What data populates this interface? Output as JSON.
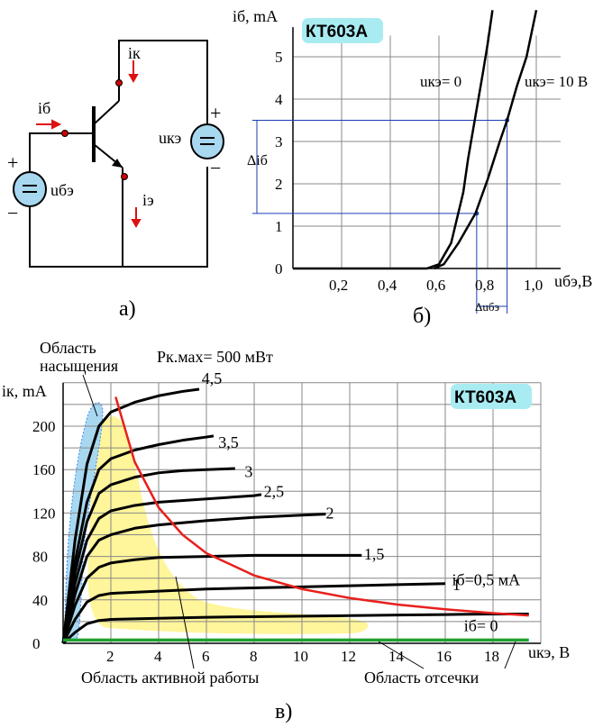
{
  "circuit": {
    "ik": "iк",
    "ib": "iб",
    "ie": "iэ",
    "ube": "uбэ",
    "uce": "uкэ",
    "plus1": "+",
    "minus1": "−",
    "plus2": "+",
    "minus2": "−",
    "caption": "а)"
  },
  "input_chart": {
    "badge": "КТ603А",
    "ylabel": "iб, mA",
    "xlabel": "uбэ,В",
    "y_ticks": [
      "0",
      "1",
      "2",
      "3",
      "4",
      "5"
    ],
    "x_ticks": [
      "0,2",
      "0,4",
      "0,6",
      "0,8",
      "1,0"
    ],
    "curve_label_0": "uкэ= 0",
    "curve_label_10": "uкэ= 10 В",
    "delta_ib": "Δiб",
    "delta_ube": "Δuбэ",
    "caption": "б)"
  },
  "output_chart": {
    "badge": "КТ603А",
    "ylabel": "iк, mA",
    "xlabel": "uкэ, В",
    "y_ticks": [
      "0",
      "40",
      "80",
      "120",
      "160",
      "200"
    ],
    "x_ticks": [
      "2",
      "4",
      "6",
      "8",
      "10",
      "12",
      "14",
      "16",
      "18"
    ],
    "pmax_label": "Pк.мах= 500 мВт",
    "saturation_label_1": "Область",
    "saturation_label_2": "насыщения",
    "active_label": "Область активной работы",
    "cutoff_label": "Область отсечки",
    "curve_labels": [
      "4,5",
      "3,5",
      "3",
      "2,5",
      "2",
      "1,5",
      "1",
      "iб=0,5 мА",
      "iб= 0"
    ],
    "caption": "в)",
    "colors": {
      "pmax": "#e8201c",
      "active": "#fff59a",
      "saturation": "#a8d8f0",
      "cutoff": "#21a131"
    }
  },
  "chart_data": [
    {
      "type": "line",
      "title": "КТ603А",
      "xlabel": "uбэ,В",
      "ylabel": "iб, mA",
      "xlim": [
        0,
        1.1
      ],
      "ylim": [
        0,
        5.5
      ],
      "series": [
        {
          "name": "uкэ= 0",
          "x": [
            0,
            0.55,
            0.6,
            0.65,
            0.7,
            0.72,
            0.75,
            0.78,
            0.8,
            0.82
          ],
          "y": [
            0,
            0,
            0.1,
            0.6,
            1.8,
            2.6,
            3.6,
            4.6,
            5.3,
            6.1
          ]
        },
        {
          "name": "uкэ= 10 В",
          "x": [
            0.58,
            0.62,
            0.68,
            0.75,
            0.8,
            0.85,
            0.88,
            0.92,
            0.96,
            1.0
          ],
          "y": [
            0,
            0.1,
            0.6,
            1.3,
            2.1,
            3.0,
            3.5,
            4.3,
            5.0,
            6.1
          ]
        }
      ]
    },
    {
      "type": "line",
      "title": "КТ603А",
      "xlabel": "uкэ, В",
      "ylabel": "iк, mA",
      "xlim": [
        0,
        20
      ],
      "ylim": [
        0,
        240
      ],
      "series": [
        {
          "name": "4,5",
          "x": [
            0,
            0.5,
            1,
            1.5,
            2,
            3,
            4,
            5,
            5.7
          ],
          "y": [
            0,
            95,
            165,
            200,
            213,
            222,
            228,
            232,
            234
          ]
        },
        {
          "name": "3,5",
          "x": [
            0,
            0.5,
            1,
            1.5,
            2,
            3,
            4,
            5,
            6,
            6.3
          ],
          "y": [
            0,
            75,
            130,
            160,
            170,
            178,
            183,
            187,
            190,
            191
          ]
        },
        {
          "name": "3",
          "x": [
            0,
            0.5,
            1,
            1.5,
            2,
            3,
            4,
            5,
            6,
            7.2
          ],
          "y": [
            0,
            65,
            112,
            138,
            146,
            153,
            157,
            159,
            160,
            161
          ]
        },
        {
          "name": "2,5",
          "x": [
            0,
            0.5,
            1,
            1.5,
            2,
            3,
            4,
            6,
            8,
            8.3
          ],
          "y": [
            0,
            55,
            95,
            115,
            122,
            127,
            130,
            133,
            136,
            137
          ]
        },
        {
          "name": "2",
          "x": [
            0,
            0.5,
            1,
            1.5,
            2,
            3,
            4,
            6,
            8,
            10,
            11
          ],
          "y": [
            0,
            45,
            80,
            95,
            100,
            106,
            109,
            113,
            116,
            118,
            119
          ]
        },
        {
          "name": "1,5",
          "x": [
            0,
            0.5,
            1,
            1.5,
            2,
            3,
            4,
            6,
            8,
            10,
            12,
            12.5
          ],
          "y": [
            0,
            35,
            60,
            70,
            74,
            77,
            79,
            80,
            81,
            81,
            81,
            81
          ]
        },
        {
          "name": "1",
          "x": [
            0,
            0.5,
            1,
            1.5,
            2,
            4,
            6,
            8,
            10,
            12,
            14,
            16
          ],
          "y": [
            0,
            22,
            38,
            44,
            46,
            48,
            50,
            51,
            52,
            53,
            54,
            55
          ]
        },
        {
          "name": "iб=0,5 мА",
          "x": [
            0,
            0.5,
            1,
            1.5,
            2,
            4,
            6,
            8,
            10,
            12,
            14,
            16,
            18,
            19.5
          ],
          "y": [
            0,
            10,
            18,
            21,
            22,
            23,
            24,
            24.5,
            25,
            25.5,
            26,
            26.5,
            27,
            27
          ]
        },
        {
          "name": "iб= 0",
          "x": [
            0,
            19.5
          ],
          "y": [
            3,
            3
          ]
        },
        {
          "name": "Pк.мах= 500 мВт",
          "x": [
            2.2,
            3,
            4,
            5,
            6,
            8,
            10,
            12,
            14,
            16,
            18,
            19.5
          ],
          "y": [
            227,
            167,
            125,
            100,
            83,
            62.5,
            50,
            41.7,
            35.7,
            31.3,
            27.8,
            25.6
          ]
        }
      ]
    }
  ]
}
